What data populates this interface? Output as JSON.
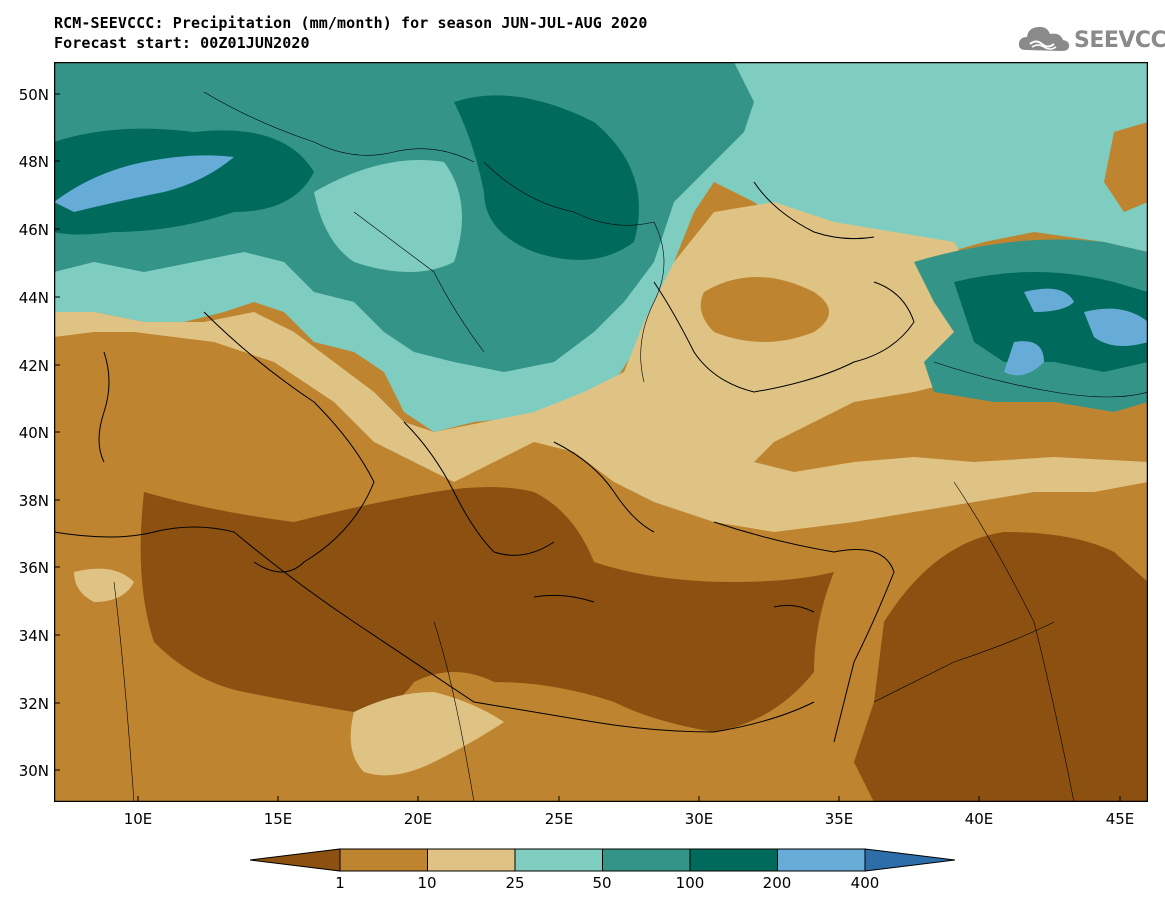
{
  "header": {
    "title_line1": "RCM-SEEVCCC: Precipitation (mm/month) for season JUN-JUL-AUG 2020",
    "title_line2": "Forecast start: 00Z01JUN2020"
  },
  "logo": {
    "text": "SEEVCCC",
    "icon": "cloud-icon",
    "color": "#8a8a8a"
  },
  "axes": {
    "lat_labels": [
      "50N",
      "48N",
      "46N",
      "44N",
      "42N",
      "40N",
      "38N",
      "36N",
      "34N",
      "32N",
      "30N"
    ],
    "lon_labels": [
      "10E",
      "15E",
      "20E",
      "25E",
      "30E",
      "35E",
      "40E",
      "45E"
    ]
  },
  "colorbar": {
    "colors": [
      "#8c5110",
      "#be8430",
      "#dfc384",
      "#7fcdc0",
      "#359488",
      "#006b5c",
      "#67acd6",
      "#2d6ea8"
    ],
    "labels": [
      "1",
      "10",
      "25",
      "50",
      "100",
      "200",
      "400"
    ]
  }
}
